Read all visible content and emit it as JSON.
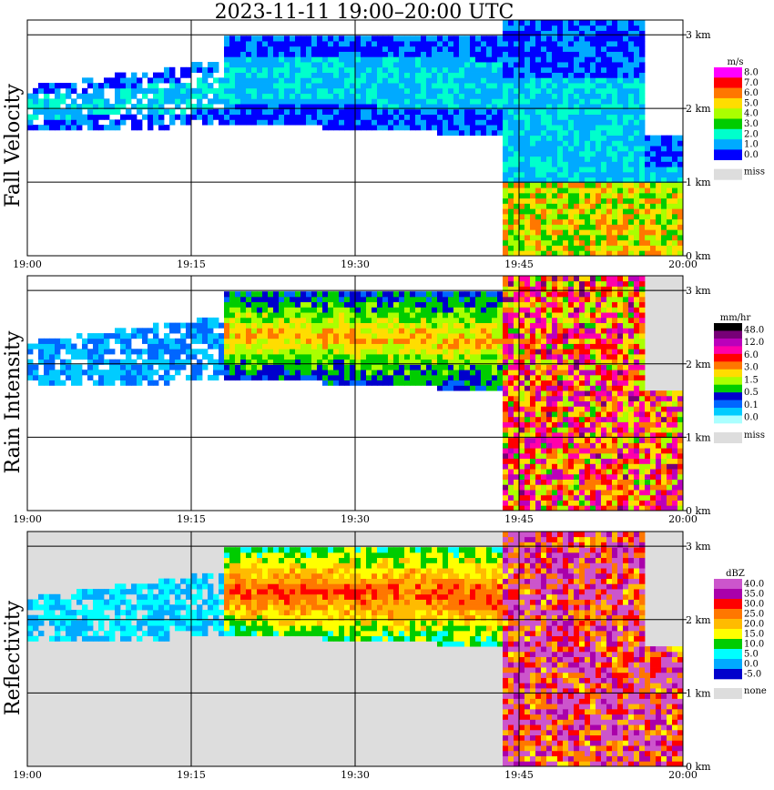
{
  "title": "2023-11-11   19:00–20:00 UTC",
  "chart_data": [
    {
      "type": "heatmap",
      "title": "Fall Velocity",
      "x_ticks": [
        "19:00",
        "19:15",
        "19:30",
        "19:45",
        "20:00"
      ],
      "y_ticks": [
        "0 km",
        "1 km",
        "2 km",
        "3 km"
      ],
      "ylim": [
        0,
        3.2
      ],
      "grid": true,
      "legend": {
        "unit": "m/s",
        "placement": "right",
        "levels": [
          "8.0",
          "7.0",
          "6.0",
          "5.0",
          "4.0",
          "3.0",
          "2.0",
          "1.0",
          "0.0"
        ],
        "colors": [
          "#ff00ff",
          "#ff0000",
          "#ff7700",
          "#ffdd00",
          "#aaff00",
          "#00cc00",
          "#00ffcc",
          "#00aaff",
          "#0000ff"
        ],
        "miss_label": "miss",
        "miss_color": "#dddddd"
      }
    },
    {
      "type": "heatmap",
      "title": "Rain Intensity",
      "x_ticks": [
        "19:00",
        "19:15",
        "19:30",
        "19:45",
        "20:00"
      ],
      "y_ticks": [
        "0 km",
        "1 km",
        "2 km",
        "3 km"
      ],
      "ylim": [
        0,
        3.2
      ],
      "grid": true,
      "legend": {
        "unit": "mm/hr",
        "placement": "right",
        "levels": [
          "48.0",
          "12.0",
          "6.0",
          "3.0",
          "1.5",
          "0.5",
          "0.1",
          "0.0"
        ],
        "colors": [
          "#000000",
          "#770077",
          "#bb00bb",
          "#ff00aa",
          "#ff0000",
          "#ff7700",
          "#ffdd00",
          "#aaff00",
          "#00cc00",
          "#0000cc",
          "#0066ff",
          "#00ccff",
          "#aaffff"
        ],
        "miss_label": "miss",
        "miss_color": "#dddddd"
      }
    },
    {
      "type": "heatmap",
      "title": "Reflectivity",
      "x_ticks": [
        "19:00",
        "19:15",
        "19:30",
        "19:45",
        "20:00"
      ],
      "y_ticks": [
        "0 km",
        "1 km",
        "2 km",
        "3 km"
      ],
      "ylim": [
        0,
        3.2
      ],
      "grid": true,
      "legend": {
        "unit": "dBZ",
        "placement": "right",
        "levels": [
          "40.0",
          "35.0",
          "30.0",
          "25.0",
          "20.0",
          "15.0",
          "10.0",
          "5.0",
          "0.0",
          "-5.0"
        ],
        "colors": [
          "#cc55cc",
          "#aa00aa",
          "#ff0000",
          "#ff7700",
          "#ffbb00",
          "#ffff00",
          "#00cc00",
          "#00ffff",
          "#00aaff",
          "#0000cc"
        ],
        "miss_label": "none",
        "miss_color": "#dddddd"
      }
    }
  ]
}
